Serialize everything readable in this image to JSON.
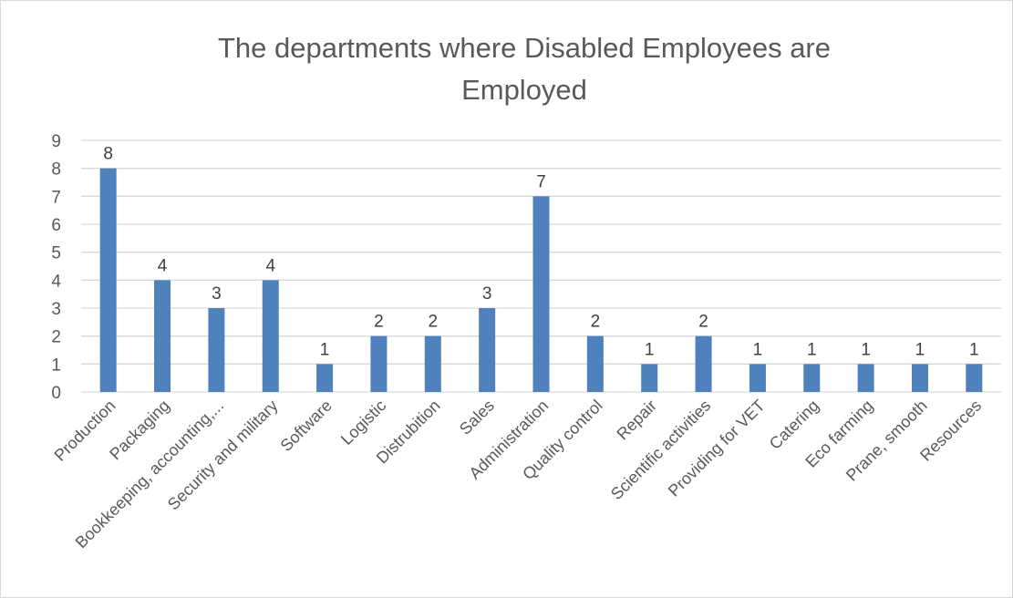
{
  "chart_data": {
    "type": "bar",
    "title_lines": [
      "The departments where Disabled Employees are",
      "Employed"
    ],
    "xlabel": "",
    "ylabel": "",
    "ylim": [
      0,
      9
    ],
    "yticks": [
      0,
      1,
      2,
      3,
      4,
      5,
      6,
      7,
      8,
      9
    ],
    "grid": true,
    "legend": "none",
    "bar_color": "#4f81bd",
    "categories": [
      "Production",
      "Packaging",
      "Bookkeeping, accounting,...",
      "Security and military",
      "Software",
      "Logistic",
      "Distrubition",
      "Sales",
      "Administration",
      "Quality control",
      "Repair",
      "Scientific activities",
      "Providing for VET",
      "Catering",
      "Eco farming",
      "Prane, smooth",
      "Resources"
    ],
    "values": [
      8,
      4,
      3,
      4,
      1,
      2,
      2,
      3,
      7,
      2,
      1,
      2,
      1,
      1,
      1,
      1,
      1
    ]
  }
}
